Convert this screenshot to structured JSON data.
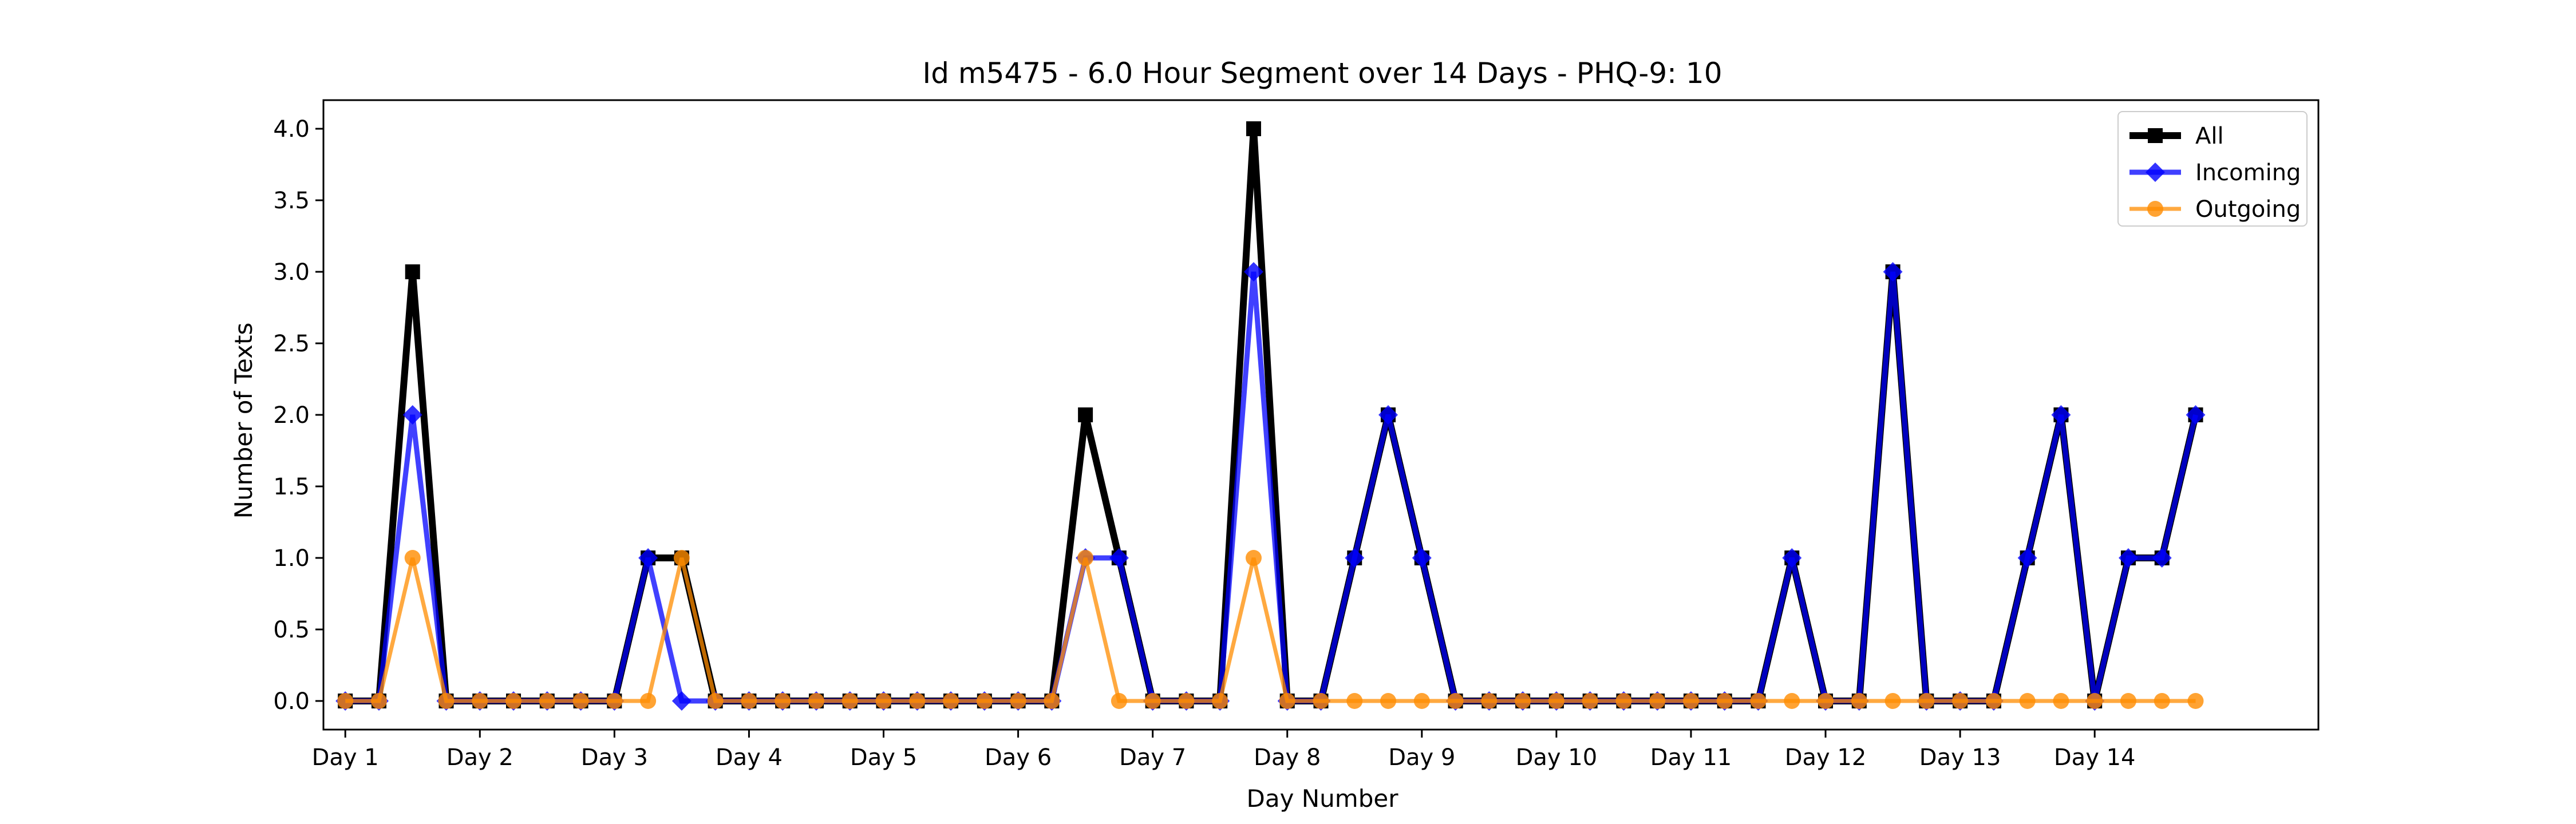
{
  "chart_data": {
    "type": "line",
    "title": "Id m5475 - 6.0 Hour Segment over 14 Days - PHQ-9: 10",
    "xlabel": "Day Number",
    "ylabel": "Number of Texts",
    "x_tick_labels": [
      "Day 1",
      "Day 2",
      "Day 3",
      "Day 4",
      "Day 5",
      "Day 6",
      "Day 7",
      "Day 8",
      "Day 9",
      "Day 10",
      "Day 11",
      "Day 12",
      "Day 13",
      "Day 14"
    ],
    "y_tick_labels": [
      "0.0",
      "0.5",
      "1.0",
      "1.5",
      "2.0",
      "2.5",
      "3.0",
      "3.5",
      "4.0"
    ],
    "xlim": [
      -0.65,
      58.65
    ],
    "ylim": [
      -0.2,
      4.2
    ],
    "x": [
      0,
      1,
      2,
      3,
      4,
      5,
      6,
      7,
      8,
      9,
      10,
      11,
      12,
      13,
      14,
      15,
      16,
      17,
      18,
      19,
      20,
      21,
      22,
      23,
      24,
      25,
      26,
      27,
      28,
      29,
      30,
      31,
      32,
      33,
      34,
      35,
      36,
      37,
      38,
      39,
      40,
      41,
      42,
      43,
      44,
      45,
      46,
      47,
      48,
      49,
      50,
      51,
      52,
      53,
      54,
      55
    ],
    "legend_position": "top-right",
    "grid": false,
    "series": [
      {
        "name": "All",
        "color": "#000000",
        "marker": "square",
        "values": [
          0,
          0,
          3,
          0,
          0,
          0,
          0,
          0,
          0,
          1,
          1,
          0,
          0,
          0,
          0,
          0,
          0,
          0,
          0,
          0,
          0,
          0,
          2,
          1,
          0,
          0,
          0,
          4,
          0,
          0,
          1,
          2,
          1,
          0,
          0,
          0,
          0,
          0,
          0,
          0,
          0,
          0,
          0,
          1,
          0,
          0,
          3,
          0,
          0,
          0,
          1,
          2,
          0,
          1,
          1,
          2
        ]
      },
      {
        "name": "Incoming",
        "color": "#0000ff",
        "marker": "diamond",
        "values": [
          0,
          0,
          2,
          0,
          0,
          0,
          0,
          0,
          0,
          1,
          0,
          0,
          0,
          0,
          0,
          0,
          0,
          0,
          0,
          0,
          0,
          0,
          1,
          1,
          0,
          0,
          0,
          3,
          0,
          0,
          1,
          2,
          1,
          0,
          0,
          0,
          0,
          0,
          0,
          0,
          0,
          0,
          0,
          1,
          0,
          0,
          3,
          0,
          0,
          0,
          1,
          2,
          0,
          1,
          1,
          2
        ]
      },
      {
        "name": "Outgoing",
        "color": "#ff8c00",
        "marker": "circle",
        "values": [
          0,
          0,
          1,
          0,
          0,
          0,
          0,
          0,
          0,
          0,
          1,
          0,
          0,
          0,
          0,
          0,
          0,
          0,
          0,
          0,
          0,
          0,
          1,
          0,
          0,
          0,
          0,
          1,
          0,
          0,
          0,
          0,
          0,
          0,
          0,
          0,
          0,
          0,
          0,
          0,
          0,
          0,
          0,
          0,
          0,
          0,
          0,
          0,
          0,
          0,
          0,
          0,
          0,
          0,
          0,
          0
        ]
      }
    ]
  }
}
